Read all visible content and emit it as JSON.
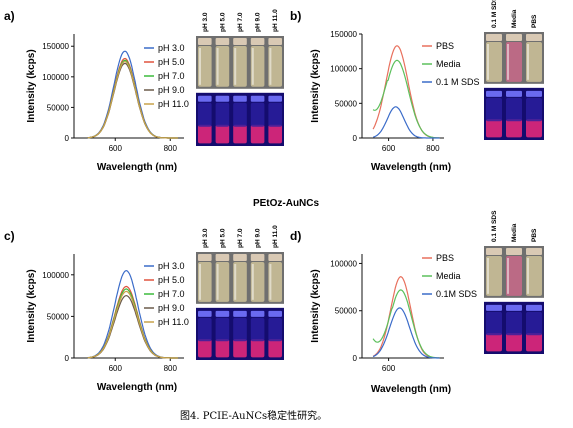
{
  "center_title": "PEtOz-AuNCs",
  "caption": "图4. PCIE-AuNCs稳定性研究。",
  "colors": {
    "pH 3.0": "#3b6cc9",
    "pH 5.0": "#e0533d",
    "pH 7.0": "#3cba3c",
    "pH 9.0": "#6a5a4a",
    "pH 11.0": "#c9a24a",
    "PBS": "#e8705d",
    "Media": "#5cc05c",
    "SDS": "#3b6cc9"
  },
  "panels": [
    {
      "letter": "a)",
      "vial_labels": [
        "pH 3.0",
        "pH 5.0",
        "pH 7.0",
        "pH 9.0",
        "pH 11.0"
      ]
    },
    {
      "letter": "b)",
      "vial_labels": [
        "0.1 M SDS",
        "Media",
        "PBS"
      ]
    },
    {
      "letter": "c)",
      "vial_labels": [
        "pH 3.0",
        "pH 5.0",
        "pH 7.0",
        "pH 9.0",
        "pH 11.0"
      ]
    },
    {
      "letter": "d)",
      "vial_labels": [
        "0.1 M SDS",
        "Media",
        "PBS"
      ]
    }
  ],
  "chart_data": [
    {
      "type": "line",
      "xlabel": "Wavelength (nm)",
      "ylabel": "Intensity (kcps)",
      "xlim": [
        450,
        850
      ],
      "ylim": [
        0,
        170000
      ],
      "xticks": [
        600,
        800
      ],
      "xtick_labels": [
        "600",
        "800"
      ],
      "yticks": [
        0,
        50000,
        100000,
        150000
      ],
      "ytick_labels": [
        "0",
        "50000",
        "100000",
        "150000"
      ],
      "legend_position": "right",
      "series": [
        {
          "name": "pH 3.0",
          "color_key": "pH 3.0",
          "peak": 142000,
          "center": 635,
          "sigma": 40
        },
        {
          "name": "pH 5.0",
          "color_key": "pH 5.0",
          "peak": 130000,
          "center": 635,
          "sigma": 40
        },
        {
          "name": "pH 7.0",
          "color_key": "pH 7.0",
          "peak": 127000,
          "center": 635,
          "sigma": 40
        },
        {
          "name": "pH 9.0",
          "color_key": "pH 9.0",
          "peak": 122000,
          "center": 635,
          "sigma": 40
        },
        {
          "name": "pH 11.0",
          "color_key": "pH 11.0",
          "peak": 125000,
          "center": 635,
          "sigma": 40
        }
      ]
    },
    {
      "type": "line",
      "xlabel": "Wavelength (nm)",
      "ylabel": "Intensity (kcps)",
      "xlim": [
        480,
        850
      ],
      "ylim": [
        0,
        150000
      ],
      "xticks": [
        600,
        800
      ],
      "xtick_labels": [
        "600",
        "800"
      ],
      "yticks": [
        0,
        50000,
        100000,
        150000
      ],
      "ytick_labels": [
        "0",
        "50000",
        "100000",
        "150000"
      ],
      "legend_position": "right",
      "series": [
        {
          "name": "PBS",
          "color_key": "PBS",
          "peak": 133000,
          "center": 638,
          "sigma": 50
        },
        {
          "name": "Media",
          "color_key": "Media",
          "peak": 112000,
          "center": 638,
          "sigma": 52,
          "scatter_tail": true
        },
        {
          "name": "0.1 M SDS",
          "color_key": "SDS",
          "peak": 45000,
          "center": 632,
          "sigma": 38
        }
      ]
    },
    {
      "type": "line",
      "xlabel": "Wavelength (nm)",
      "ylabel": "Intensity (kcps)",
      "xlim": [
        450,
        850
      ],
      "ylim": [
        0,
        125000
      ],
      "xticks": [
        600,
        800
      ],
      "xtick_labels": [
        "600",
        "800"
      ],
      "yticks": [
        0,
        50000,
        100000
      ],
      "ytick_labels": [
        "0",
        "50000",
        "100000"
      ],
      "legend_position": "right",
      "series": [
        {
          "name": "pH 3.0",
          "color_key": "pH 3.0",
          "peak": 105000,
          "center": 640,
          "sigma": 42
        },
        {
          "name": "pH 5.0",
          "color_key": "pH 5.0",
          "peak": 86000,
          "center": 640,
          "sigma": 42
        },
        {
          "name": "pH 7.0",
          "color_key": "pH 7.0",
          "peak": 83000,
          "center": 640,
          "sigma": 42
        },
        {
          "name": "pH 9.0",
          "color_key": "pH 9.0",
          "peak": 75000,
          "center": 640,
          "sigma": 42
        },
        {
          "name": "pH 11.0",
          "color_key": "pH 11.0",
          "peak": 80000,
          "center": 640,
          "sigma": 42
        }
      ]
    },
    {
      "type": "line",
      "xlabel": "Wavelength (nm)",
      "ylabel": "Intensity (kcps)",
      "xlim": [
        480,
        850
      ],
      "ylim": [
        0,
        110000
      ],
      "xticks": [
        600
      ],
      "xtick_labels": [
        "600"
      ],
      "yticks": [
        0,
        50000,
        100000
      ],
      "ytick_labels": [
        "0",
        "50000",
        "100000"
      ],
      "legend_position": "right",
      "series": [
        {
          "name": "PBS",
          "color_key": "PBS",
          "peak": 86000,
          "center": 655,
          "sigma": 45
        },
        {
          "name": "Media",
          "color_key": "Media",
          "peak": 72000,
          "center": 655,
          "sigma": 48,
          "scatter_tail": true
        },
        {
          "name": "0.1M SDS",
          "color_key": "SDS",
          "peak": 53000,
          "center": 650,
          "sigma": 45
        }
      ]
    }
  ]
}
